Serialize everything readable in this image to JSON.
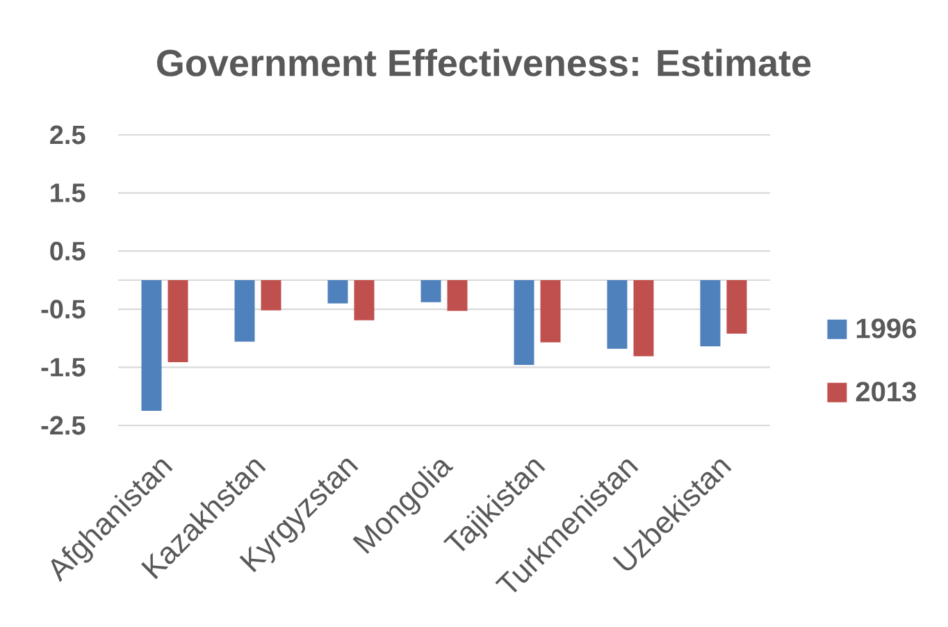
{
  "chart_data": {
    "type": "bar",
    "title": "Government Effectiveness: Estimate",
    "categories": [
      "Afghanistan",
      "Kazakhstan",
      "Kyrgyzstan",
      "Mongolia",
      "Tajikistan",
      "Turkmenistan",
      "Uzbekistan"
    ],
    "series": [
      {
        "name": "1996",
        "color": "#4f81bd",
        "values": [
          -2.25,
          -1.06,
          -0.4,
          -0.38,
          -1.46,
          -1.18,
          -1.14
        ]
      },
      {
        "name": "2013",
        "color": "#c0504d",
        "values": [
          -1.41,
          -0.52,
          -0.69,
          -0.53,
          -1.07,
          -1.31,
          -0.92
        ]
      }
    ],
    "ylim": [
      -2.5,
      2.5
    ],
    "yticks": [
      -2.5,
      -1.5,
      -0.5,
      0.5,
      1.5,
      2.5
    ],
    "grid": "y",
    "legend": "right"
  }
}
